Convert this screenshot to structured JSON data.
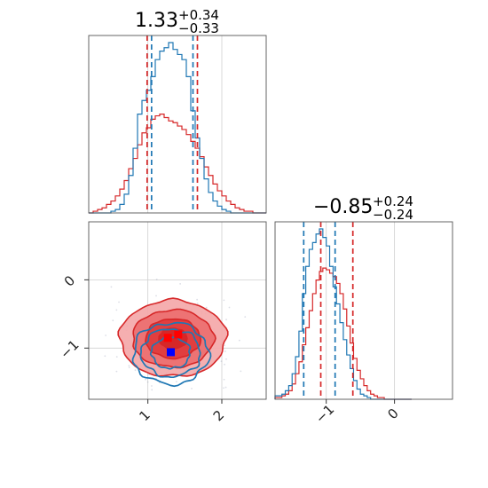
{
  "chart_data": {
    "type": "corner",
    "colors": {
      "blue": "#1f77b4",
      "red": "#d62728",
      "scatter": "#9aa0b8"
    },
    "titles": [
      {
        "main": "1.33",
        "sup": "+0.34",
        "sub": "−0.33"
      },
      {
        "main": "−0.85",
        "sup": "+0.24",
        "sub": "−0.24"
      }
    ],
    "hist1": {
      "xlim": [
        0.2,
        2.6
      ],
      "grid_x": [
        1,
        2
      ],
      "bins": [
        0.2,
        0.26,
        0.32,
        0.38,
        0.44,
        0.5,
        0.56,
        0.62,
        0.68,
        0.74,
        0.8,
        0.86,
        0.92,
        0.98,
        1.04,
        1.1,
        1.16,
        1.22,
        1.28,
        1.34,
        1.4,
        1.46,
        1.52,
        1.58,
        1.64,
        1.7,
        1.76,
        1.82,
        1.88,
        1.94,
        2.0,
        2.06,
        2.12,
        2.18,
        2.24,
        2.3,
        2.36,
        2.42,
        2.48,
        2.54,
        2.6
      ],
      "blue": [
        0,
        0,
        0,
        0,
        0,
        0.01,
        0.02,
        0.05,
        0.11,
        0.22,
        0.38,
        0.58,
        0.66,
        0.72,
        0.8,
        0.9,
        0.95,
        0.97,
        1.0,
        0.96,
        0.93,
        0.9,
        0.8,
        0.6,
        0.44,
        0.32,
        0.2,
        0.12,
        0.07,
        0.04,
        0.02,
        0.01,
        0,
        0,
        0,
        0,
        0,
        0,
        0,
        0
      ],
      "red": [
        0,
        0.01,
        0.02,
        0.03,
        0.05,
        0.07,
        0.1,
        0.14,
        0.19,
        0.26,
        0.32,
        0.4,
        0.47,
        0.5,
        0.55,
        0.57,
        0.58,
        0.56,
        0.54,
        0.53,
        0.51,
        0.49,
        0.46,
        0.42,
        0.38,
        0.33,
        0.27,
        0.22,
        0.17,
        0.13,
        0.1,
        0.07,
        0.05,
        0.03,
        0.02,
        0.01,
        0.01,
        0,
        0,
        0
      ],
      "blue_lines": [
        1.05,
        1.61
      ],
      "red_lines": [
        0.99,
        1.67
      ]
    },
    "hist2": {
      "xlim": [
        -1.75,
        0.85
      ],
      "grid_x": [
        -1,
        0
      ],
      "ticks": [
        {
          "v": -1,
          "label": "−1"
        },
        {
          "v": 0,
          "label": "0"
        }
      ],
      "bins": [
        -1.75,
        -1.7,
        -1.65,
        -1.6,
        -1.55,
        -1.5,
        -1.45,
        -1.4,
        -1.35,
        -1.3,
        -1.25,
        -1.2,
        -1.15,
        -1.1,
        -1.05,
        -1.0,
        -0.95,
        -0.9,
        -0.85,
        -0.8,
        -0.75,
        -0.7,
        -0.65,
        -0.6,
        -0.55,
        -0.5,
        -0.45,
        -0.4,
        -0.35,
        -0.3,
        -0.25,
        -0.2,
        -0.15,
        -0.1,
        -0.05,
        0.0,
        0.05,
        0.1,
        0.15,
        0.2,
        0.25
      ],
      "blue": [
        0.02,
        0.02,
        0.03,
        0.05,
        0.08,
        0.15,
        0.25,
        0.4,
        0.62,
        0.78,
        0.88,
        0.92,
        0.97,
        1.0,
        0.95,
        0.9,
        0.78,
        0.66,
        0.56,
        0.45,
        0.35,
        0.26,
        0.18,
        0.11,
        0.06,
        0.03,
        0.02,
        0.01,
        0,
        0,
        0,
        0,
        0,
        0,
        0,
        0,
        0,
        0,
        0,
        0
      ],
      "red": [
        0.01,
        0.01,
        0.02,
        0.03,
        0.05,
        0.09,
        0.15,
        0.22,
        0.32,
        0.42,
        0.52,
        0.62,
        0.7,
        0.75,
        0.77,
        0.76,
        0.74,
        0.72,
        0.68,
        0.62,
        0.53,
        0.43,
        0.33,
        0.24,
        0.17,
        0.12,
        0.08,
        0.05,
        0.03,
        0.02,
        0.01,
        0.01,
        0,
        0,
        0,
        0,
        0,
        0,
        0,
        0
      ],
      "blue_lines": [
        -1.33,
        -0.87
      ],
      "red_lines": [
        -1.08,
        -0.61
      ]
    },
    "joint": {
      "xlim": [
        0.2,
        2.6
      ],
      "ylim": [
        -1.75,
        0.85
      ],
      "grid_x": [
        1,
        2
      ],
      "grid_y": [
        -1,
        0
      ],
      "xticks": [
        {
          "v": 1,
          "label": "1"
        },
        {
          "v": 2,
          "label": "2"
        }
      ],
      "yticks": [
        {
          "v": 0,
          "label": "0"
        },
        {
          "v": -1,
          "label": "−1"
        }
      ],
      "red_contours": [
        {
          "cx": 1.34,
          "cy": -0.86,
          "rx": 0.72,
          "ry": 0.56,
          "fill": "#f4a6a7",
          "opacity": 0.9
        },
        {
          "cx": 1.34,
          "cy": -0.86,
          "rx": 0.55,
          "ry": 0.42,
          "fill": "#ec7071",
          "opacity": 0.95
        },
        {
          "cx": 1.34,
          "cy": -0.86,
          "rx": 0.37,
          "ry": 0.29,
          "fill": "#e13e3f",
          "opacity": 1
        },
        {
          "cx": 1.34,
          "cy": -0.86,
          "rx": 0.19,
          "ry": 0.15,
          "fill": "#d62728",
          "opacity": 1
        }
      ],
      "blue_contours": [
        {
          "cx": 1.31,
          "cy": -1.08,
          "rx": 0.51,
          "ry": 0.45
        },
        {
          "cx": 1.31,
          "cy": -1.07,
          "rx": 0.4,
          "ry": 0.35
        },
        {
          "cx": 1.31,
          "cy": -1.07,
          "rx": 0.26,
          "ry": 0.23
        }
      ],
      "markers": [
        {
          "x": 1.27,
          "y": -0.85,
          "color": "#ff0000"
        },
        {
          "x": 1.41,
          "y": -0.8,
          "color": "#ff0000"
        },
        {
          "x": 1.31,
          "y": -1.06,
          "color": "#0000ff"
        }
      ]
    }
  }
}
